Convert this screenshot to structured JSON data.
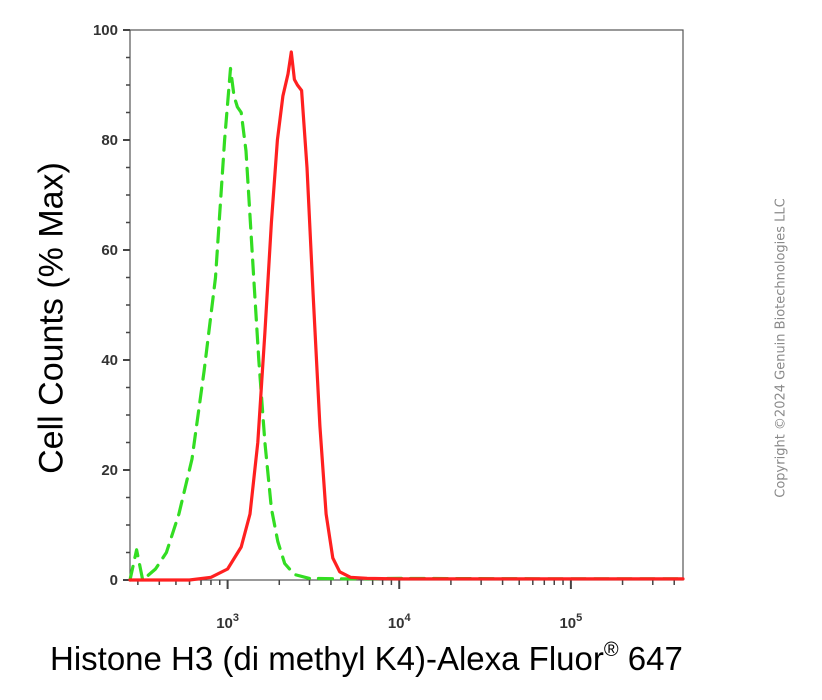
{
  "chart_data": {
    "type": "line",
    "title": "",
    "xlabel": {
      "main": "Histone H3 (di methyl K4)-Alexa Fluor",
      "reg": "®",
      "suffix": " 647"
    },
    "ylabel": "Cell Counts (% Max)",
    "x_scale": "log",
    "xlim": [
      270,
      450000
    ],
    "ylim": [
      0,
      100
    ],
    "y_ticks": [
      0,
      20,
      40,
      60,
      80,
      100
    ],
    "x_ticks": [
      {
        "value": 1000,
        "base": "10",
        "exp": "3"
      },
      {
        "value": 10000,
        "base": "10",
        "exp": "4"
      },
      {
        "value": 100000,
        "base": "10",
        "exp": "5"
      }
    ],
    "grid": false,
    "series": [
      {
        "color": "#33dd22",
        "style": "dashed",
        "x": [
          270,
          295,
          320,
          380,
          440,
          520,
          620,
          730,
          850,
          960,
          1040,
          1090,
          1140,
          1200,
          1280,
          1340,
          1420,
          1520,
          1650,
          1800,
          1960,
          2150,
          2450,
          3000,
          5000,
          10000,
          100000,
          450000
        ],
        "y": [
          0,
          5.5,
          0,
          2,
          5,
          12,
          22,
          38,
          55,
          80,
          93,
          88,
          86,
          85,
          78,
          68,
          55,
          40,
          25,
          13,
          7,
          3,
          1,
          0.3,
          0.2,
          0.3,
          0.2,
          0.2
        ]
      },
      {
        "color": "#ff2020",
        "style": "solid",
        "x": [
          270,
          600,
          800,
          1000,
          1200,
          1350,
          1500,
          1650,
          1800,
          1950,
          2100,
          2250,
          2350,
          2450,
          2550,
          2700,
          2900,
          3150,
          3450,
          3750,
          4100,
          4500,
          5200,
          6500,
          10000,
          100000,
          450000
        ],
        "y": [
          0,
          0,
          0.5,
          2,
          6,
          12,
          25,
          45,
          65,
          80,
          88,
          92,
          96,
          91,
          90,
          89,
          75,
          52,
          28,
          12,
          4,
          1.5,
          0.5,
          0.3,
          0.2,
          0.2,
          0.2
        ]
      }
    ]
  },
  "copyright": "Copyright ©2024 Genuin Biotechnologies LLC"
}
